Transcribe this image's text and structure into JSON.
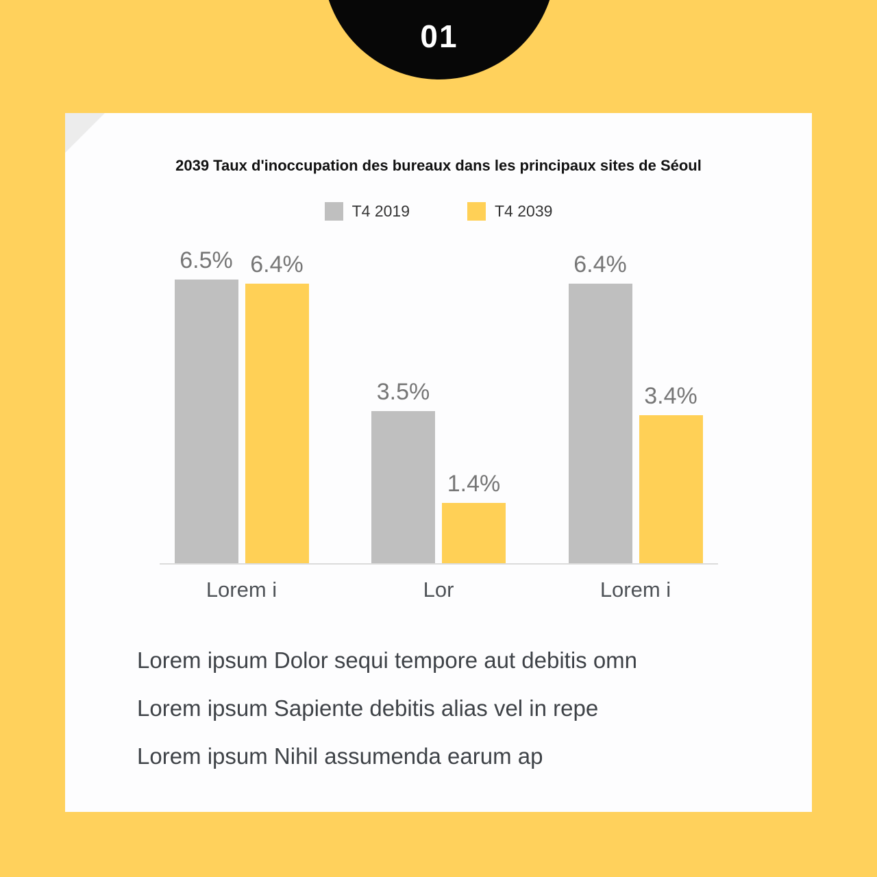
{
  "page": {
    "badge_number": "01"
  },
  "colors": {
    "background": "#FFD15C",
    "badge": "#070707",
    "card": "#FDFDFE",
    "fold": "#ECECEC",
    "axis": "#DBDBDB",
    "value_label": "#767676"
  },
  "chart_data": {
    "type": "bar",
    "title": "2039 Taux d'inoccupation des bureaux dans les principaux sites de Séoul",
    "categories": [
      "Lorem i",
      "Lor",
      "Lorem i"
    ],
    "series": [
      {
        "name": "T4 2019",
        "color": "#BFBFBF",
        "values": [
          6.5,
          3.5,
          6.4
        ]
      },
      {
        "name": "T4 2039",
        "color": "#FFD056",
        "values": [
          6.4,
          1.4,
          3.4
        ]
      }
    ],
    "value_suffix": "%",
    "xlabel": "",
    "ylabel": "",
    "ylim": [
      0,
      6.5
    ],
    "grid": false,
    "legend_position": "top"
  },
  "body": {
    "lines": [
      "Lorem ipsum Dolor sequi tempore aut debitis omn",
      "Lorem ipsum Sapiente debitis alias vel in repe",
      "Lorem ipsum Nihil assumenda earum ap"
    ]
  }
}
